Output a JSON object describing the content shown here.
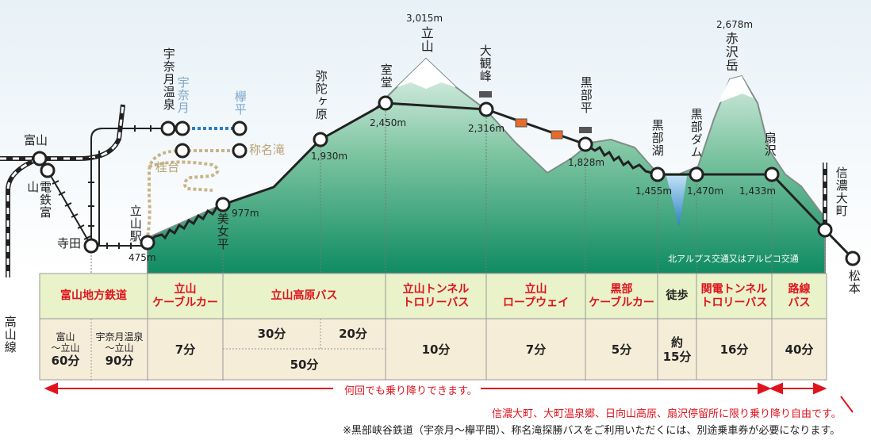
{
  "stations": {
    "toyama": "富山",
    "dentetsu_toyama": "電鉄富山",
    "terada": "寺田",
    "unazuki_onsen": "宇奈月温泉",
    "unazuki": "宇奈月",
    "keyakidaira": "欅平",
    "keitai": "桂台",
    "shomyodaki": "称名滝",
    "tateyama_eki": "立山駅",
    "bijodaira": "美女平",
    "midagahara": "弥陀ヶ原",
    "murodo": "室堂",
    "daikanbo": "大観峰",
    "kurobedaira": "黒部平",
    "kurobeko": "黒部湖",
    "kurobe_dam": "黒部ダム",
    "ogisawa": "扇沢",
    "shinano_omachi": "信濃大町",
    "matsumoto": "松本",
    "takayama_line": "高山線"
  },
  "peaks": {
    "tateyama": {
      "name": "立山",
      "elev": "3,015m"
    },
    "akazawadake": {
      "name": "赤沢岳",
      "elev": "2,678m"
    }
  },
  "elevations": {
    "tateyama_eki": "475m",
    "bijodaira": "977m",
    "midagahara": "1,930m",
    "murodo": "2,450m",
    "daikanbo": "2,316m",
    "kurobedaira": "1,828m",
    "kurobeko": "1,455m",
    "kurobe_dam": "1,470m",
    "ogisawa": "1,433m"
  },
  "bus_note": "北アルプス交通又はアルピコ交通",
  "table": {
    "headers": {
      "toyama_chiho": "富山地方鉄道",
      "cable": [
        "立山",
        "ケーブルカー"
      ],
      "kogen_bus": "立山高原バス",
      "tunnel_trolley": [
        "立山トンネル",
        "トロリーバス"
      ],
      "ropeway": [
        "立山",
        "ロープウェイ"
      ],
      "kurobe_cable": [
        "黒部",
        "ケーブルカー"
      ],
      "toho": "徒歩",
      "kanden_trolley": [
        "関電トンネル",
        "トロリーバス"
      ],
      "rosen_bus": [
        "路線",
        "バス"
      ]
    },
    "times": {
      "toyama_tateyama_label": [
        "富山",
        "〜立山"
      ],
      "toyama_tateyama": "60分",
      "unazuki_tateyama_label": [
        "宇奈月温泉",
        "〜立山"
      ],
      "unazuki_tateyama": "90分",
      "cable": "7分",
      "bus_a": "30分",
      "bus_b": "20分",
      "bus_total": "50分",
      "tunnel_trolley": "10分",
      "ropeway": "7分",
      "kurobe_cable": "5分",
      "toho": [
        "約",
        "15分"
      ],
      "kanden_trolley": "16分",
      "rosen_bus": "40分"
    }
  },
  "arrow_note": "何回でも乗り降りできます。",
  "footnote_red": "信濃大町、大町温泉郷、日向山高原、扇沢停留所に限り乗り降り自由です。",
  "footnote": "※黒部峡谷鉄道（宇奈月〜欅平間）、称名滝探勝バスをご利用いただくには、別途乗車券が必要になります。",
  "colors": {
    "mountain_green": "#3aa36f",
    "mountain_green_light": "#cfe8d8",
    "table_header_bg": "#e9f2c9",
    "table_body_bg": "#f6edd9",
    "accent_red": "#e0141e",
    "rail_black": "#222222",
    "kurobe_blue": "#2a7fc1",
    "shomyo_tan": "#c9b48a"
  }
}
